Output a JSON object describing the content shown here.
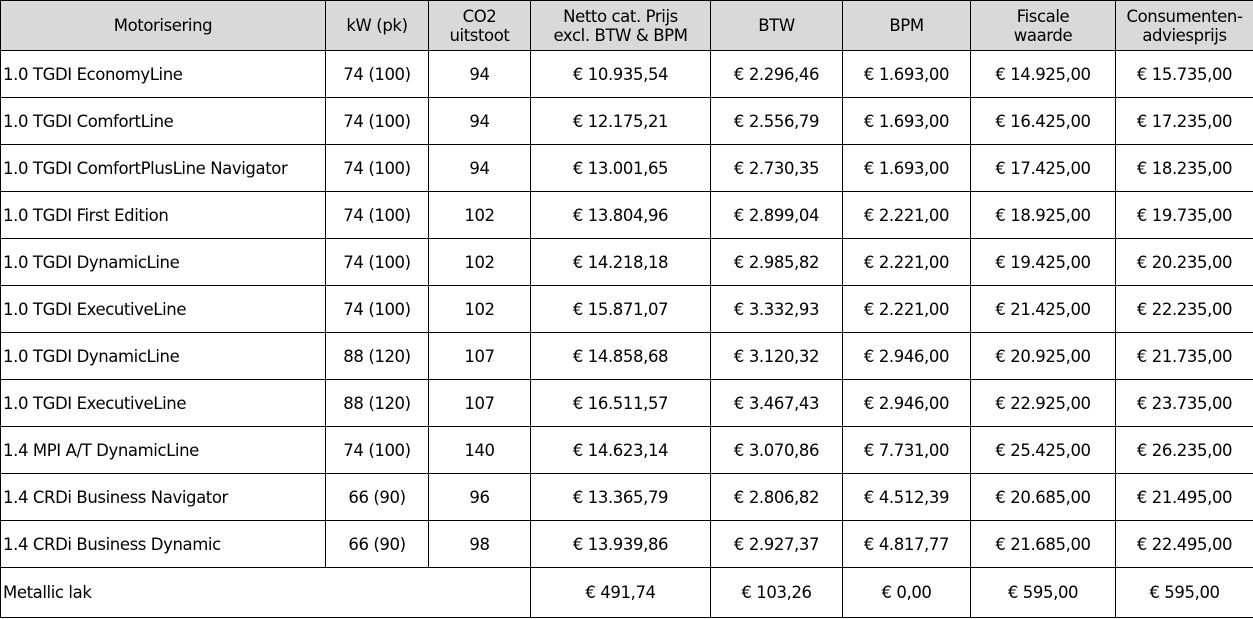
{
  "headers": [
    {
      "l1": "Motorisering",
      "l2": ""
    },
    {
      "l1": "kW (pk)",
      "l2": ""
    },
    {
      "l1": "CO2",
      "l2": "uitstoot"
    },
    {
      "l1": "Netto cat. Prijs",
      "l2": "excl. BTW & BPM"
    },
    {
      "l1": "BTW",
      "l2": ""
    },
    {
      "l1": "BPM",
      "l2": ""
    },
    {
      "l1": "Fiscale",
      "l2": "waarde"
    },
    {
      "l1": "Consumenten-",
      "l2": "adviesprijs"
    }
  ],
  "rows": [
    [
      "1.0 TGDI EconomyLine",
      "74 (100)",
      "94",
      "€ 10.935,54",
      "€ 2.296,46",
      "€ 1.693,00",
      "€ 14.925,00",
      "€ 15.735,00"
    ],
    [
      "1.0 TGDI ComfortLine",
      "74 (100)",
      "94",
      "€ 12.175,21",
      "€ 2.556,79",
      "€ 1.693,00",
      "€ 16.425,00",
      "€ 17.235,00"
    ],
    [
      "1.0 TGDI ComfortPlusLine Navigator",
      "74 (100)",
      "94",
      "€ 13.001,65",
      "€ 2.730,35",
      "€ 1.693,00",
      "€ 17.425,00",
      "€ 18.235,00"
    ],
    [
      "1.0 TGDI  First Edition",
      "74 (100)",
      "102",
      "€ 13.804,96",
      "€ 2.899,04",
      "€ 2.221,00",
      "€ 18.925,00",
      "€ 19.735,00"
    ],
    [
      "1.0 TGDI DynamicLine",
      "74 (100)",
      "102",
      "€ 14.218,18",
      "€ 2.985,82",
      "€ 2.221,00",
      "€ 19.425,00",
      "€ 20.235,00"
    ],
    [
      "1.0 TGDI ExecutiveLine",
      "74 (100)",
      "102",
      "€ 15.871,07",
      "€ 3.332,93",
      "€ 2.221,00",
      "€ 21.425,00",
      "€ 22.235,00"
    ],
    [
      "1.0 TGDI DynamicLine",
      "88 (120)",
      "107",
      "€ 14.858,68",
      "€ 3.120,32",
      "€ 2.946,00",
      "€ 20.925,00",
      "€ 21.735,00"
    ],
    [
      "1.0 TGDI ExecutiveLine",
      "88 (120)",
      "107",
      "€ 16.511,57",
      "€ 3.467,43",
      "€ 2.946,00",
      "€ 22.925,00",
      "€ 23.735,00"
    ],
    [
      "1.4 MPI A/T DynamicLine",
      "74 (100)",
      "140",
      "€ 14.623,14",
      "€ 3.070,86",
      "€ 7.731,00",
      "€ 25.425,00",
      "€ 26.235,00"
    ],
    [
      "1.4 CRDi Business Navigator",
      "66 (90)",
      "96",
      "€ 13.365,79",
      "€ 2.806,82",
      "€ 4.512,39",
      "€ 20.685,00",
      "€ 21.495,00"
    ],
    [
      "1.4 CRDi Business Dynamic",
      "66 (90)",
      "98",
      "€ 13.939,86",
      "€ 2.927,37",
      "€ 4.817,77",
      "€ 21.685,00",
      "€ 22.495,00"
    ]
  ],
  "footer": {
    "label": "Metallic lak",
    "values": [
      "€ 491,74",
      "€ 103,26",
      "€ 0,00",
      "€ 595,00",
      "€ 595,00"
    ]
  },
  "colors": {
    "header_bg": "#d9d9d9",
    "border": "#000000"
  }
}
